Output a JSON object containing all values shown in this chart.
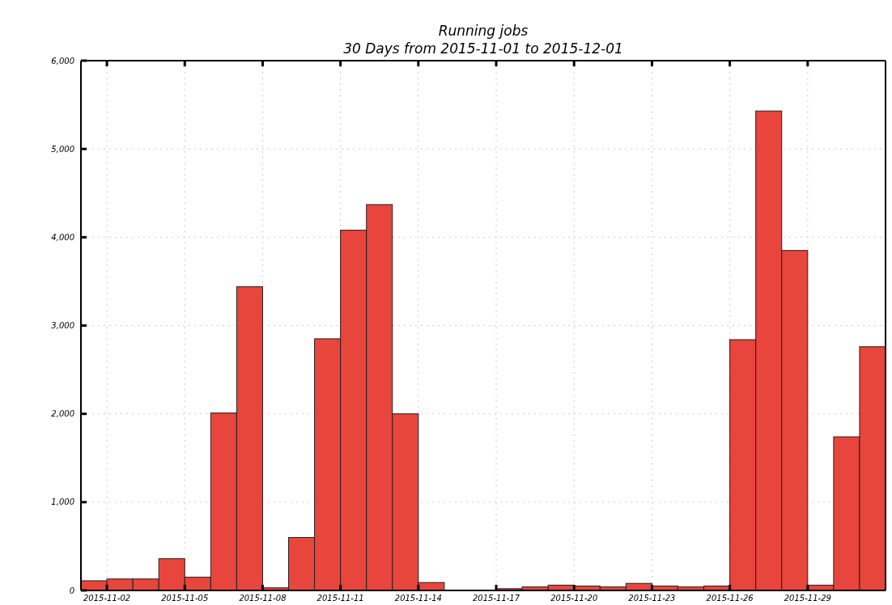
{
  "chart_data": {
    "type": "bar",
    "title": "Running jobs",
    "subtitle": "30 Days from 2015-11-01 to 2015-12-01",
    "x": [
      "2015-11-01T12:00",
      "2015-11-02T12:00",
      "2015-11-03T12:00",
      "2015-11-04T12:00",
      "2015-11-05T12:00",
      "2015-11-06T12:00",
      "2015-11-07T12:00",
      "2015-11-08T12:00",
      "2015-11-09T12:00",
      "2015-11-10T12:00",
      "2015-11-11T12:00",
      "2015-11-12T12:00",
      "2015-11-13T12:00",
      "2015-11-14T12:00",
      "2015-11-15T12:00",
      "2015-11-16T12:00",
      "2015-11-17T12:00",
      "2015-11-18T12:00",
      "2015-11-19T12:00",
      "2015-11-20T12:00",
      "2015-11-21T12:00",
      "2015-11-22T12:00",
      "2015-11-23T12:00",
      "2015-11-24T12:00",
      "2015-11-25T12:00",
      "2015-11-26T12:00",
      "2015-11-27T12:00",
      "2015-11-28T12:00",
      "2015-11-29T12:00",
      "2015-11-30T12:00",
      "2015-12-01T12:00"
    ],
    "values": [
      110,
      130,
      130,
      360,
      150,
      2010,
      3440,
      30,
      600,
      2850,
      4080,
      4370,
      2000,
      90,
      0,
      0,
      20,
      40,
      60,
      50,
      40,
      80,
      50,
      40,
      50,
      2840,
      5430,
      3850,
      60,
      1740,
      2760
    ],
    "color": "#e8453c",
    "xlim": [
      "2015-11-01",
      "2015-12-02"
    ],
    "xticks": [
      "2015-11-02",
      "2015-11-05",
      "2015-11-08",
      "2015-11-11",
      "2015-11-14",
      "2015-11-17",
      "2015-11-20",
      "2015-11-23",
      "2015-11-26",
      "2015-11-29"
    ],
    "ylim": [
      0,
      6000
    ],
    "yticks": [
      {
        "value": 0,
        "label": "0"
      },
      {
        "value": 1000,
        "label": "1,000"
      },
      {
        "value": 2000,
        "label": "2,000"
      },
      {
        "value": 3000,
        "label": "3,000"
      },
      {
        "value": 4000,
        "label": "4,000"
      },
      {
        "value": 5000,
        "label": "5,000"
      },
      {
        "value": 6000,
        "label": "6,000"
      }
    ],
    "grid": true
  }
}
